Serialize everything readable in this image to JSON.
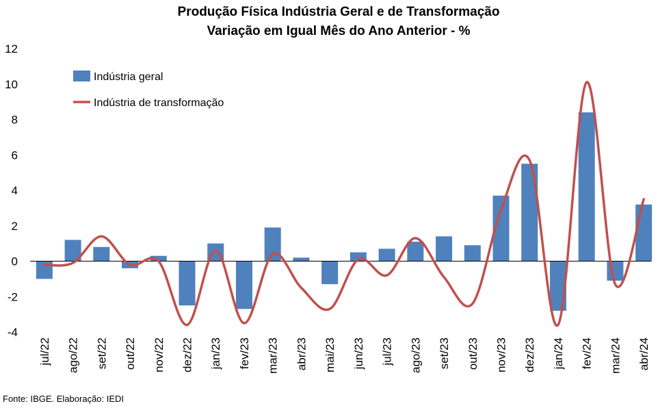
{
  "chart_data": {
    "type": "bar",
    "title": "Produção Física Indústria Geral e de Transformação",
    "subtitle": "Variação em Igual Mês do Ano Anterior - %",
    "categories": [
      "jul/22",
      "ago/22",
      "set/22",
      "out/22",
      "nov/22",
      "dez/22",
      "jan/23",
      "fev/23",
      "mar/23",
      "abr/23",
      "mai/23",
      "jun/23",
      "jul/23",
      "ago/23",
      "set/23",
      "out/23",
      "nov/23",
      "dez/23",
      "jan/24",
      "fev/24",
      "mar/24",
      "abr/24"
    ],
    "series": [
      {
        "name": "Indústria geral",
        "type": "bar",
        "color": "#4F81BD",
        "values": [
          -1.0,
          1.2,
          0.8,
          -0.4,
          0.3,
          -2.5,
          1.0,
          -2.7,
          1.9,
          0.2,
          -1.3,
          0.5,
          0.7,
          1.1,
          1.4,
          0.9,
          3.7,
          5.5,
          -2.8,
          8.4,
          -1.1,
          3.2
        ]
      },
      {
        "name": "Indústria de transformação",
        "type": "line",
        "color": "#C0504D",
        "values": [
          -0.2,
          -0.1,
          1.4,
          -0.2,
          0.0,
          -3.6,
          0.6,
          -3.5,
          0.4,
          -1.5,
          -2.7,
          0.1,
          -0.8,
          1.3,
          -0.9,
          -2.4,
          2.9,
          5.7,
          -3.6,
          10.1,
          -1.3,
          3.5
        ]
      }
    ],
    "ylim": [
      -4,
      12
    ],
    "yticks": [
      -4,
      -2,
      0,
      2,
      4,
      6,
      8,
      10,
      12
    ],
    "legend_position": "top-left",
    "grid": false
  },
  "source": "Fonte: IBGE. Elaboração: IEDI"
}
